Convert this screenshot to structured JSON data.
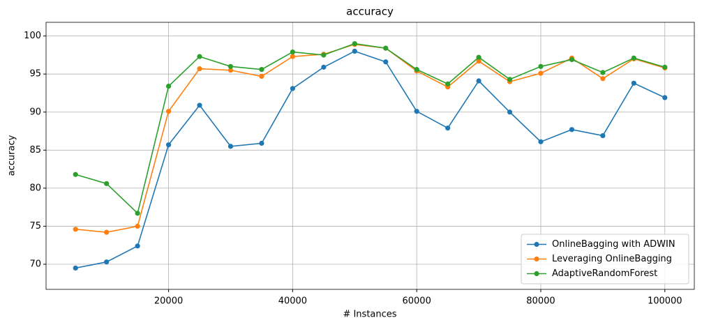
{
  "chart_data": {
    "type": "line",
    "title": "accuracy",
    "x_label": "# Instances",
    "y_label": "accuracy",
    "x": [
      5000,
      10000,
      15000,
      20000,
      25000,
      30000,
      35000,
      40000,
      45000,
      50000,
      55000,
      60000,
      65000,
      70000,
      75000,
      80000,
      85000,
      90000,
      95000,
      100000
    ],
    "series": [
      {
        "name": "OnlineBagging with ADWIN",
        "color": "#1f77b4",
        "values": [
          69.5,
          70.3,
          72.4,
          85.7,
          90.9,
          85.5,
          85.9,
          93.1,
          95.9,
          98.0,
          96.6,
          90.1,
          87.9,
          94.1,
          90.0,
          86.1,
          87.7,
          86.9,
          93.8,
          91.9
        ]
      },
      {
        "name": "Leveraging OnlineBagging",
        "color": "#ff7f0e",
        "values": [
          74.6,
          74.2,
          75.0,
          90.1,
          95.7,
          95.5,
          94.7,
          97.3,
          97.6,
          98.9,
          98.4,
          95.4,
          93.3,
          96.7,
          94.0,
          95.1,
          97.1,
          94.4,
          97.0,
          95.8
        ]
      },
      {
        "name": "AdaptiveRandomForest",
        "color": "#2ca02c",
        "values": [
          81.8,
          80.6,
          76.7,
          93.4,
          97.3,
          96.0,
          95.6,
          97.9,
          97.5,
          99.0,
          98.4,
          95.6,
          93.7,
          97.2,
          94.3,
          96.0,
          96.9,
          95.2,
          97.1,
          95.9
        ]
      }
    ],
    "xlim": [
      250,
      104750
    ],
    "ylim": [
      66.7,
      101.8
    ],
    "xticks": [
      20000,
      40000,
      60000,
      80000,
      100000
    ],
    "yticks": [
      70,
      75,
      80,
      85,
      90,
      95,
      100
    ],
    "grid": true,
    "legend": "lower right"
  }
}
